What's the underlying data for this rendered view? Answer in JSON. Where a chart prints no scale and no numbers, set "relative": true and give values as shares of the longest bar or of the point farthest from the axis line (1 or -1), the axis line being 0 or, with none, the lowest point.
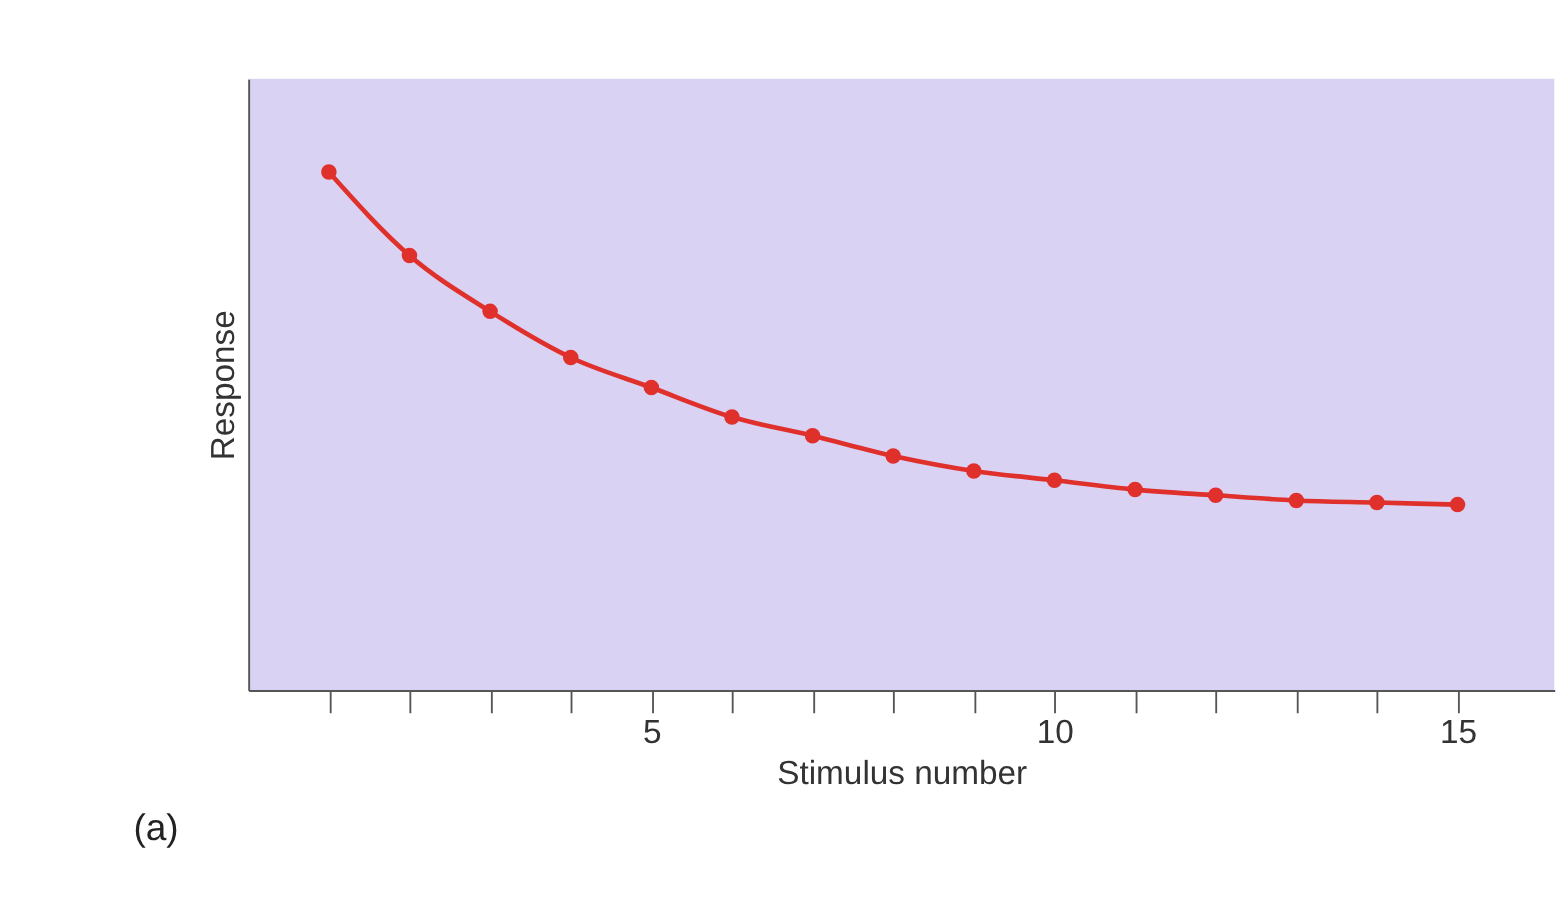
{
  "chart_data": {
    "type": "line",
    "xlabel": "Stimulus number",
    "ylabel": "Response",
    "x": [
      1,
      2,
      3,
      4,
      5,
      6,
      7,
      8,
      9,
      10,
      11,
      12,
      13,
      14,
      15
    ],
    "series": [
      {
        "color": "#e0302c",
        "values": [
          1,
          0.839,
          0.731,
          0.642,
          0.584,
          0.527,
          0.491,
          0.452,
          0.423,
          0.405,
          0.387,
          0.376,
          0.366,
          0.362,
          0.358
        ]
      }
    ],
    "relative": true,
    "xlim": [
      0,
      16.2
    ],
    "xticks": [
      {
        "value": 1,
        "label": null
      },
      {
        "value": 2,
        "label": null
      },
      {
        "value": 3,
        "label": null
      },
      {
        "value": 4,
        "label": null
      },
      5,
      {
        "value": 6,
        "label": null
      },
      {
        "value": 7,
        "label": null
      },
      {
        "value": 8,
        "label": null
      },
      {
        "value": 9,
        "label": null
      },
      10,
      {
        "value": 11,
        "label": null
      },
      {
        "value": 12,
        "label": null
      },
      {
        "value": 13,
        "label": null
      },
      {
        "value": 14,
        "label": null
      },
      15
    ],
    "marker": "circle",
    "line_style": "solid",
    "grid": false,
    "annotations": [
      "(a)"
    ]
  }
}
